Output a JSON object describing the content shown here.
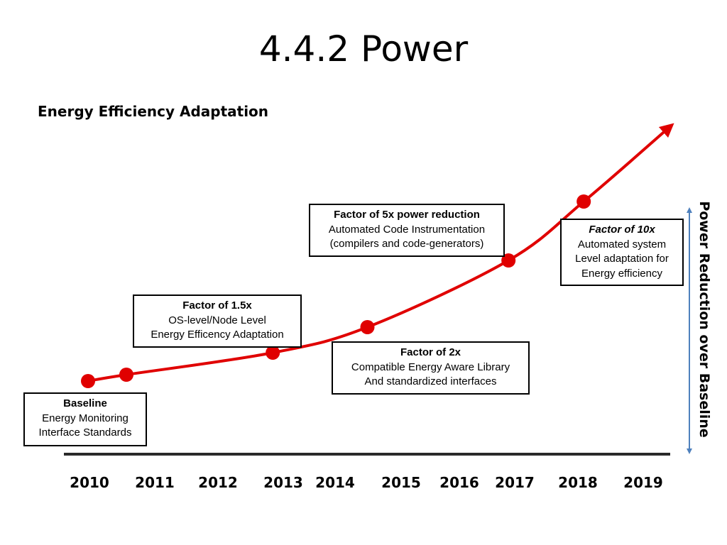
{
  "slide": {
    "title": "4.4.2 Power",
    "subtitle": "Energy Efficiency Adaptation"
  },
  "chart_data": {
    "type": "line",
    "x_axis": {
      "categories": [
        "2010",
        "2011",
        "2012",
        "2013",
        "2014",
        "2015",
        "2016",
        "2017",
        "2018",
        "2019"
      ]
    },
    "y_axis_label": "Power Reduction over Baseline",
    "series": [
      {
        "points": [
          {
            "x": 2010.0
          },
          {
            "x": 2010.6
          },
          {
            "x": 2012.85
          },
          {
            "x": 2014.5
          },
          {
            "x": 2016.9
          },
          {
            "x": 2018.1
          }
        ]
      }
    ],
    "colors": {
      "line": "#e00000",
      "axis": "#2a2a2a",
      "side_arrow": "#4f81bd"
    }
  },
  "callouts": [
    {
      "head": "Baseline",
      "lines": [
        "Energy Monitoring",
        "Interface Standards"
      ]
    },
    {
      "head": "Factor of 1.5x",
      "lines": [
        "OS-level/Node Level",
        "Energy Efficency Adaptation"
      ]
    },
    {
      "head": "Factor of 5x power reduction",
      "lines": [
        "Automated Code Instrumentation",
        "(compilers and code-generators)"
      ]
    },
    {
      "head": "Factor of 2x",
      "lines": [
        "Compatible Energy Aware Library",
        "And standardized interfaces"
      ]
    },
    {
      "head": "Factor of 10x",
      "lines": [
        "Automated system",
        "Level adaptation for",
        "Energy efficiency"
      ]
    }
  ]
}
